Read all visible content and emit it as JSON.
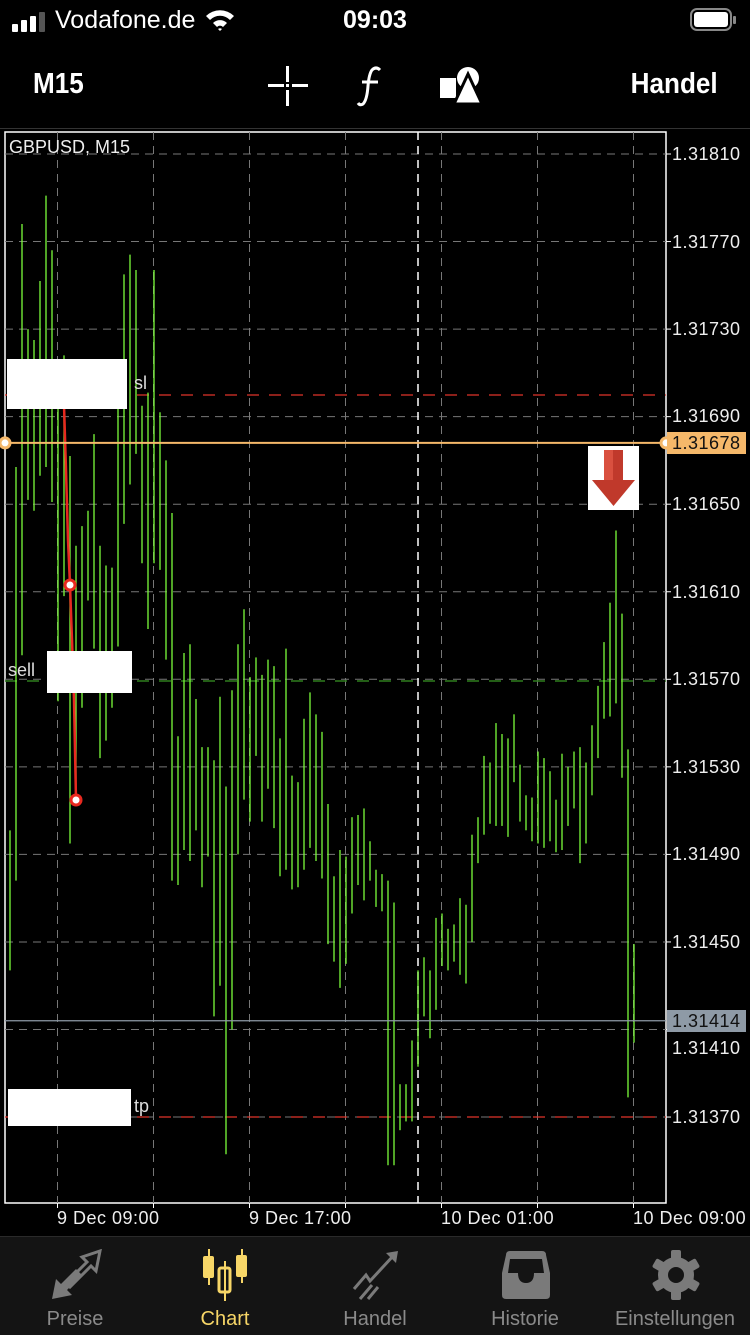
{
  "status_bar": {
    "carrier": "Vodafone.de",
    "time": "09:03",
    "signal_bars": 3,
    "battery_level": 0.9
  },
  "nav": {
    "timeframe": "M15",
    "trade_label": "Handel",
    "icons": [
      "crosshair-icon",
      "indicators-f-icon",
      "objects-shapes-icon"
    ]
  },
  "chart": {
    "symbol_label": "GBPUSD, M15",
    "ask_price": "1.31678",
    "bid_price": "1.31414",
    "order_labels": {
      "sl": "sl",
      "sell": "sell",
      "tp": "tp"
    },
    "signal_icon": "sell-arrow-down-icon",
    "colors": {
      "bars": "#7cfc3a",
      "ask_line": "#f5b86a",
      "bid_line": "#8e9aa6",
      "sl_tp_line": "#e0342a",
      "entry_line": "#2f7d1e",
      "deal_line": "#e8291f"
    }
  },
  "chart_data": {
    "type": "ohlc-bar",
    "symbol": "GBPUSD",
    "timeframe": "M15",
    "x_tick_labels": [
      "9 Dec 09:00",
      "9 Dec 17:00",
      "10 Dec 01:00",
      "10 Dec 09:00"
    ],
    "y_tick_labels": [
      "1.31810",
      "1.31770",
      "1.31730",
      "1.31690",
      "1.31650",
      "1.31610",
      "1.31570",
      "1.31530",
      "1.31490",
      "1.31450",
      "1.31410",
      "1.31370"
    ],
    "ylim": [
      1.3133,
      1.3182
    ],
    "grid": true,
    "bars_high_low": [
      [
        1.31501,
        1.31437
      ],
      [
        1.31667,
        1.31478
      ],
      [
        1.31778,
        1.31581
      ],
      [
        1.3173,
        1.31652
      ],
      [
        1.31725,
        1.31647
      ],
      [
        1.31752,
        1.31663
      ],
      [
        1.31791,
        1.31667
      ],
      [
        1.31766,
        1.31651
      ],
      [
        1.31707,
        1.3156
      ],
      [
        1.31718,
        1.31608
      ],
      [
        1.31672,
        1.31495
      ],
      [
        1.31631,
        1.31519
      ],
      [
        1.3164,
        1.31557
      ],
      [
        1.31647,
        1.31606
      ],
      [
        1.31682,
        1.31584
      ],
      [
        1.31631,
        1.31534
      ],
      [
        1.31622,
        1.31542
      ],
      [
        1.31621,
        1.31557
      ],
      [
        1.31707,
        1.31585
      ],
      [
        1.31755,
        1.31641
      ],
      [
        1.31764,
        1.31659
      ],
      [
        1.31757,
        1.31673
      ],
      [
        1.31695,
        1.31623
      ],
      [
        1.31701,
        1.31593
      ],
      [
        1.31757,
        1.31623
      ],
      [
        1.31692,
        1.3162
      ],
      [
        1.3167,
        1.31579
      ],
      [
        1.31646,
        1.31478
      ],
      [
        1.31544,
        1.31476
      ],
      [
        1.31582,
        1.31492
      ],
      [
        1.31586,
        1.31487
      ],
      [
        1.31561,
        1.31501
      ],
      [
        1.31539,
        1.31475
      ],
      [
        1.31539,
        1.31489
      ],
      [
        1.31533,
        1.31416
      ],
      [
        1.31562,
        1.3143
      ],
      [
        1.31521,
        1.31353
      ],
      [
        1.31565,
        1.3141
      ],
      [
        1.31586,
        1.3149
      ],
      [
        1.31602,
        1.31515
      ],
      [
        1.31571,
        1.31505
      ],
      [
        1.3158,
        1.31535
      ],
      [
        1.31572,
        1.31505
      ],
      [
        1.31579,
        1.3152
      ],
      [
        1.31576,
        1.31502
      ],
      [
        1.31543,
        1.3148
      ],
      [
        1.31584,
        1.31483
      ],
      [
        1.31526,
        1.31474
      ],
      [
        1.31523,
        1.31475
      ],
      [
        1.31552,
        1.31483
      ],
      [
        1.31564,
        1.31493
      ],
      [
        1.31554,
        1.31487
      ],
      [
        1.31546,
        1.31479
      ],
      [
        1.31513,
        1.31449
      ],
      [
        1.3148,
        1.31441
      ],
      [
        1.31492,
        1.31429
      ],
      [
        1.31489,
        1.3144
      ],
      [
        1.31507,
        1.31463
      ],
      [
        1.31508,
        1.31476
      ],
      [
        1.31511,
        1.31469
      ],
      [
        1.31496,
        1.31478
      ],
      [
        1.31483,
        1.31466
      ],
      [
        1.31481,
        1.31464
      ],
      [
        1.31478,
        1.31348
      ],
      [
        1.31468,
        1.31348
      ],
      [
        1.31385,
        1.31364
      ],
      [
        1.31385,
        1.31368
      ],
      [
        1.31405,
        1.31368
      ],
      [
        1.31437,
        1.31393
      ],
      [
        1.31443,
        1.31416
      ],
      [
        1.31437,
        1.31406
      ],
      [
        1.31461,
        1.31419
      ],
      [
        1.31463,
        1.31439
      ],
      [
        1.31456,
        1.31437
      ],
      [
        1.31458,
        1.31441
      ],
      [
        1.3147,
        1.31435
      ],
      [
        1.31467,
        1.31431
      ],
      [
        1.31499,
        1.3145
      ],
      [
        1.31507,
        1.31486
      ],
      [
        1.31535,
        1.31499
      ],
      [
        1.31532,
        1.31504
      ],
      [
        1.3155,
        1.31503
      ],
      [
        1.31545,
        1.31503
      ],
      [
        1.31543,
        1.31498
      ],
      [
        1.31554,
        1.31523
      ],
      [
        1.31531,
        1.31505
      ],
      [
        1.31517,
        1.31501
      ],
      [
        1.31516,
        1.31496
      ],
      [
        1.31537,
        1.31495
      ],
      [
        1.31534,
        1.31493
      ],
      [
        1.31528,
        1.31496
      ],
      [
        1.31515,
        1.31491
      ],
      [
        1.31536,
        1.31492
      ],
      [
        1.3153,
        1.31503
      ],
      [
        1.31537,
        1.31511
      ],
      [
        1.31539,
        1.31486
      ],
      [
        1.31532,
        1.31495
      ],
      [
        1.31549,
        1.31517
      ],
      [
        1.31567,
        1.31534
      ],
      [
        1.31587,
        1.31552
      ],
      [
        1.31605,
        1.31553
      ],
      [
        1.31638,
        1.31559
      ],
      [
        1.316,
        1.31525
      ],
      [
        1.31538,
        1.31379
      ],
      [
        1.31449,
        1.31404
      ]
    ]
  },
  "tabs": [
    {
      "label": "Preise",
      "icon": "quotes-arrows-icon",
      "active": false
    },
    {
      "label": "Chart",
      "icon": "candlesticks-icon",
      "active": true
    },
    {
      "label": "Handel",
      "icon": "trade-trend-icon",
      "active": false
    },
    {
      "label": "Historie",
      "icon": "history-tray-icon",
      "active": false
    },
    {
      "label": "Einstellungen",
      "icon": "gear-icon",
      "active": false
    }
  ]
}
